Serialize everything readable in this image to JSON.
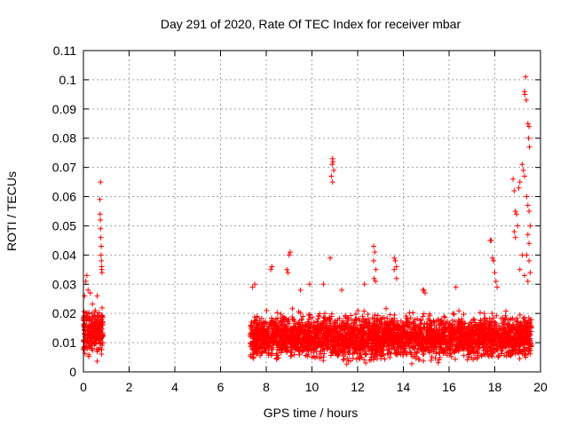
{
  "chart_data": {
    "type": "scatter",
    "title": "Day 291 of 2020, Rate Of TEC Index for receiver mbar",
    "xlabel": "GPS time / hours",
    "ylabel": "ROTI / TECUs",
    "xlim": [
      0,
      20
    ],
    "ylim": [
      0,
      0.11
    ],
    "xticks": [
      "0",
      "2",
      "4",
      "6",
      "8",
      "10",
      "12",
      "14",
      "16",
      "18",
      "20"
    ],
    "yticks": [
      "0",
      "0.01",
      "0.02",
      "0.03",
      "0.04",
      "0.05",
      "0.06",
      "0.07",
      "0.08",
      "0.09",
      "0.1",
      "0.11"
    ],
    "grid": true,
    "marker": "+",
    "color": "#ff0000",
    "series": [
      {
        "dense_bands": [
          {
            "x_start": 0.0,
            "x_end": 0.85,
            "y_low": 0.003,
            "y_high": 0.024
          },
          {
            "x_start": 7.3,
            "x_end": 19.6,
            "y_low": 0.002,
            "y_high": 0.022
          }
        ],
        "points": [
          [
            0.1,
            0.031
          ],
          [
            0.15,
            0.033
          ],
          [
            0.2,
            0.028
          ],
          [
            0.05,
            0.026
          ],
          [
            0.3,
            0.027
          ],
          [
            0.6,
            0.026
          ],
          [
            0.75,
            0.065
          ],
          [
            0.72,
            0.059
          ],
          [
            0.73,
            0.054
          ],
          [
            0.74,
            0.052
          ],
          [
            0.75,
            0.049
          ],
          [
            0.76,
            0.046
          ],
          [
            0.78,
            0.043
          ],
          [
            0.77,
            0.04
          ],
          [
            0.79,
            0.038
          ],
          [
            0.8,
            0.036
          ],
          [
            0.81,
            0.034
          ],
          [
            0.8,
            0.035
          ],
          [
            7.4,
            0.029
          ],
          [
            7.5,
            0.03
          ],
          [
            8.2,
            0.035
          ],
          [
            8.25,
            0.036
          ],
          [
            8.9,
            0.035
          ],
          [
            8.95,
            0.034
          ],
          [
            9.0,
            0.04
          ],
          [
            9.05,
            0.041
          ],
          [
            9.5,
            0.028
          ],
          [
            9.9,
            0.03
          ],
          [
            10.5,
            0.03
          ],
          [
            10.8,
            0.039
          ],
          [
            10.9,
            0.073
          ],
          [
            10.92,
            0.072
          ],
          [
            10.88,
            0.071
          ],
          [
            10.95,
            0.069
          ],
          [
            10.85,
            0.067
          ],
          [
            10.9,
            0.065
          ],
          [
            11.3,
            0.028
          ],
          [
            12.3,
            0.03
          ],
          [
            12.7,
            0.043
          ],
          [
            12.75,
            0.041
          ],
          [
            12.7,
            0.038
          ],
          [
            12.8,
            0.035
          ],
          [
            12.72,
            0.032
          ],
          [
            12.78,
            0.031
          ],
          [
            13.6,
            0.039
          ],
          [
            13.65,
            0.038
          ],
          [
            13.7,
            0.036
          ],
          [
            13.6,
            0.035
          ],
          [
            13.7,
            0.032
          ],
          [
            14.9,
            0.028
          ],
          [
            14.95,
            0.027
          ],
          [
            14.85,
            0.028
          ],
          [
            16.3,
            0.029
          ],
          [
            17.8,
            0.045
          ],
          [
            17.85,
            0.045
          ],
          [
            17.9,
            0.039
          ],
          [
            17.95,
            0.038
          ],
          [
            18.0,
            0.034
          ],
          [
            18.05,
            0.031
          ],
          [
            18.1,
            0.029
          ],
          [
            18.8,
            0.066
          ],
          [
            18.85,
            0.062
          ],
          [
            18.9,
            0.055
          ],
          [
            18.95,
            0.054
          ],
          [
            18.85,
            0.048
          ],
          [
            18.9,
            0.046
          ],
          [
            19.0,
            0.05
          ],
          [
            19.05,
            0.063
          ],
          [
            19.1,
            0.065
          ],
          [
            19.2,
            0.071
          ],
          [
            19.25,
            0.069
          ],
          [
            19.3,
            0.067
          ],
          [
            19.35,
            0.101
          ],
          [
            19.3,
            0.096
          ],
          [
            19.32,
            0.095
          ],
          [
            19.38,
            0.093
          ],
          [
            19.45,
            0.085
          ],
          [
            19.5,
            0.084
          ],
          [
            19.48,
            0.08
          ],
          [
            19.52,
            0.077
          ],
          [
            19.4,
            0.06
          ],
          [
            19.45,
            0.057
          ],
          [
            19.5,
            0.055
          ],
          [
            19.55,
            0.05
          ],
          [
            19.45,
            0.047
          ],
          [
            19.5,
            0.044
          ],
          [
            19.4,
            0.04
          ],
          [
            19.5,
            0.038
          ],
          [
            19.55,
            0.034
          ],
          [
            19.45,
            0.031
          ],
          [
            19.2,
            0.04
          ],
          [
            19.1,
            0.035
          ],
          [
            19.3,
            0.033
          ]
        ]
      }
    ]
  }
}
